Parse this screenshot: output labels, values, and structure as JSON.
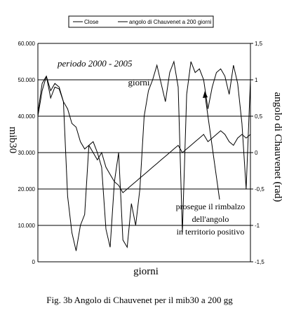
{
  "chart_data": {
    "type": "line",
    "title": "",
    "legend": {
      "placement": "top",
      "entries": [
        "Close",
        "angolo di Chauvenet a 200 giorni"
      ]
    },
    "xlabel": "giorni",
    "xlabel_inner": "giorni",
    "ylabel": "mib30",
    "ylabel_right": "angolo di Chauvenet (rad)",
    "ylim": [
      0,
      60000
    ],
    "ylim_right": [
      -1.5,
      1.5
    ],
    "y_ticks": [
      "0",
      "10.000",
      "20.000",
      "30.000",
      "40.000",
      "50.000",
      "60.000"
    ],
    "y_tick_values": [
      0,
      10000,
      20000,
      30000,
      40000,
      50000,
      60000
    ],
    "y_right_ticks": [
      "-1,5",
      "-1",
      "-0,5",
      "0",
      "0,5",
      "1",
      "1,5"
    ],
    "y_right_tick_values": [
      -1.5,
      -1,
      -0.5,
      0,
      0.5,
      1,
      1.5
    ],
    "gridlines": "horizontal",
    "annotations": {
      "period": "periodo 2000 - 2005",
      "note_line1": "prosegue il rimbalzo",
      "note_line2": "dell'angolo",
      "note_line3": "in territorio positivo"
    },
    "caption": "Fig. 3b Angolo di Chauvenet per il mib30 a 200 gg",
    "series": [
      {
        "name": "Close",
        "axis": "left",
        "x": [
          0,
          2,
          4,
          6,
          8,
          10,
          12,
          14,
          16,
          18,
          20,
          22,
          24,
          26,
          28,
          30,
          32,
          34,
          36,
          38,
          40,
          42,
          44,
          46,
          48,
          50,
          52,
          54,
          56,
          58,
          60,
          62,
          64,
          66,
          68,
          70,
          72,
          74,
          76,
          78,
          80,
          82,
          84,
          86,
          88,
          90,
          92,
          94,
          96,
          98,
          100
        ],
        "values": [
          40000,
          47000,
          51000,
          45000,
          48000,
          47500,
          44000,
          42000,
          38000,
          37000,
          33000,
          31000,
          32000,
          30000,
          28000,
          30000,
          26000,
          24000,
          22000,
          21000,
          19000,
          20000,
          21000,
          22000,
          23000,
          24000,
          25000,
          26000,
          27000,
          28000,
          29000,
          30000,
          31000,
          32000,
          30000,
          31000,
          32000,
          33000,
          34000,
          35000,
          33000,
          34000,
          35000,
          36000,
          35000,
          33000,
          32000,
          34000,
          35000,
          34000,
          35000
        ]
      },
      {
        "name": "angolo di Chauvenet a 200 giorni",
        "axis": "right",
        "x": [
          0,
          2,
          4,
          6,
          8,
          10,
          12,
          14,
          16,
          18,
          20,
          22,
          24,
          26,
          28,
          30,
          32,
          34,
          36,
          38,
          40,
          42,
          44,
          46,
          48,
          50,
          52,
          54,
          56,
          58,
          60,
          62,
          64,
          66,
          68,
          70,
          72,
          74,
          76,
          78,
          80,
          82,
          84,
          86,
          88,
          90,
          92,
          94,
          96,
          98,
          100
        ],
        "values": [
          0.55,
          0.95,
          1.05,
          0.85,
          0.95,
          0.9,
          0.7,
          -0.6,
          -1.1,
          -1.35,
          -1.0,
          -0.85,
          0.1,
          0.15,
          0.0,
          -0.2,
          -1.05,
          -1.3,
          -0.4,
          0.0,
          -1.2,
          -1.3,
          -0.7,
          -1.0,
          -0.5,
          0.5,
          0.85,
          1.0,
          1.2,
          0.95,
          0.7,
          1.1,
          1.25,
          0.9,
          -1.1,
          0.8,
          1.25,
          1.1,
          1.15,
          1.0,
          0.6,
          0.9,
          1.1,
          1.15,
          1.05,
          0.8,
          1.2,
          0.95,
          0.4,
          -0.5,
          1.0
        ]
      }
    ]
  }
}
